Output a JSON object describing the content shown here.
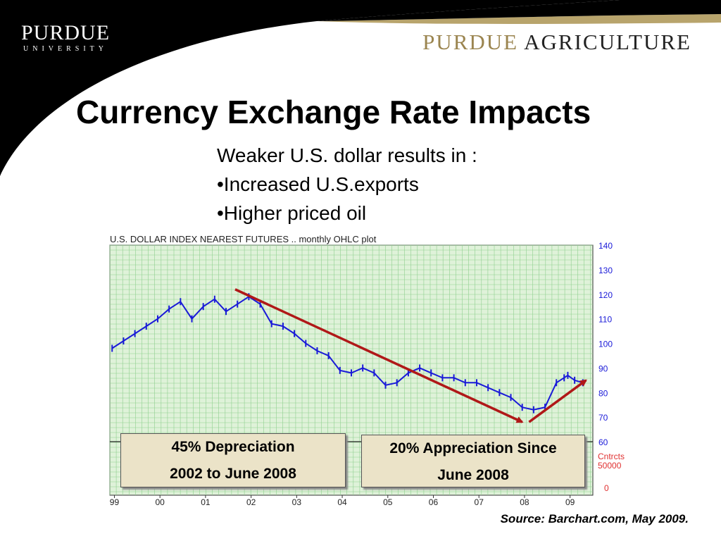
{
  "header": {
    "logo_left_main": "PURDUE",
    "logo_left_sub": "UNIVERSITY",
    "logo_right_purdue": "PURDUE",
    "logo_right_agri": "AGRICULTURE"
  },
  "slide": {
    "title": "Currency Exchange Rate Impacts",
    "bullets": [
      "Weaker U.S. dollar results in :",
      "•Increased U.S.exports",
      "•Higher priced oil"
    ],
    "callout1": {
      "line1": "45% Depreciation",
      "line2": "2002 to June 2008"
    },
    "callout2": {
      "line1": "20% Appreciation Since",
      "line2": "June 2008"
    },
    "source": "Source: Barchart.com, May 2009."
  },
  "colors": {
    "series": "#1a1ad8",
    "arrow": "#b01818",
    "grid_bg": "#dff2d9",
    "grid_line": "#8fcf8f",
    "axis_label": "#1a1ad8",
    "volume_label": "#e03030"
  },
  "chart_data": {
    "type": "line",
    "title": "U.S. DOLLAR INDEX NEAREST FUTURES .. monthly OHLC plot",
    "ylim": [
      60,
      140
    ],
    "y_ticks": [
      "140",
      "130",
      "120",
      "110",
      "100",
      "90",
      "80",
      "70",
      "60"
    ],
    "x_ticks": [
      "99",
      "00",
      "01",
      "02",
      "03",
      "04",
      "05",
      "06",
      "07",
      "08",
      "09"
    ],
    "volume_label": [
      "Cntrcts",
      "50000"
    ],
    "volume_zero": "0",
    "series": [
      {
        "x": [
          1999.0,
          1999.25,
          1999.5,
          1999.75,
          2000.0,
          2000.25,
          2000.5,
          2000.75,
          2001.0,
          2001.25,
          2001.5,
          2001.75,
          2002.0,
          2002.25,
          2002.5,
          2002.75,
          2003.0,
          2003.25,
          2003.5,
          2003.75,
          2004.0,
          2004.25,
          2004.5,
          2004.75,
          2005.0,
          2005.25,
          2005.5,
          2005.75,
          2006.0,
          2006.25,
          2006.5,
          2006.75,
          2007.0,
          2007.25,
          2007.5,
          2007.75,
          2008.0,
          2008.25,
          2008.5,
          2008.75,
          2008.92,
          2009.0,
          2009.15,
          2009.33
        ],
        "y": [
          98,
          101,
          104,
          107,
          110,
          114,
          117,
          110,
          115,
          118,
          113,
          116,
          119,
          116,
          108,
          107,
          104,
          100,
          97,
          95,
          89,
          88,
          90,
          88,
          83,
          84,
          88,
          90,
          88,
          86,
          86,
          84,
          84,
          82,
          80,
          78,
          74,
          73,
          74,
          84,
          86,
          87,
          85,
          84
        ]
      }
    ],
    "annotations": [
      {
        "type": "arrow",
        "from": [
          2001.7,
          122
        ],
        "to": [
          2008.0,
          68
        ]
      },
      {
        "type": "arrow",
        "from": [
          2008.15,
          68
        ],
        "to": [
          2009.4,
          85
        ]
      }
    ]
  }
}
